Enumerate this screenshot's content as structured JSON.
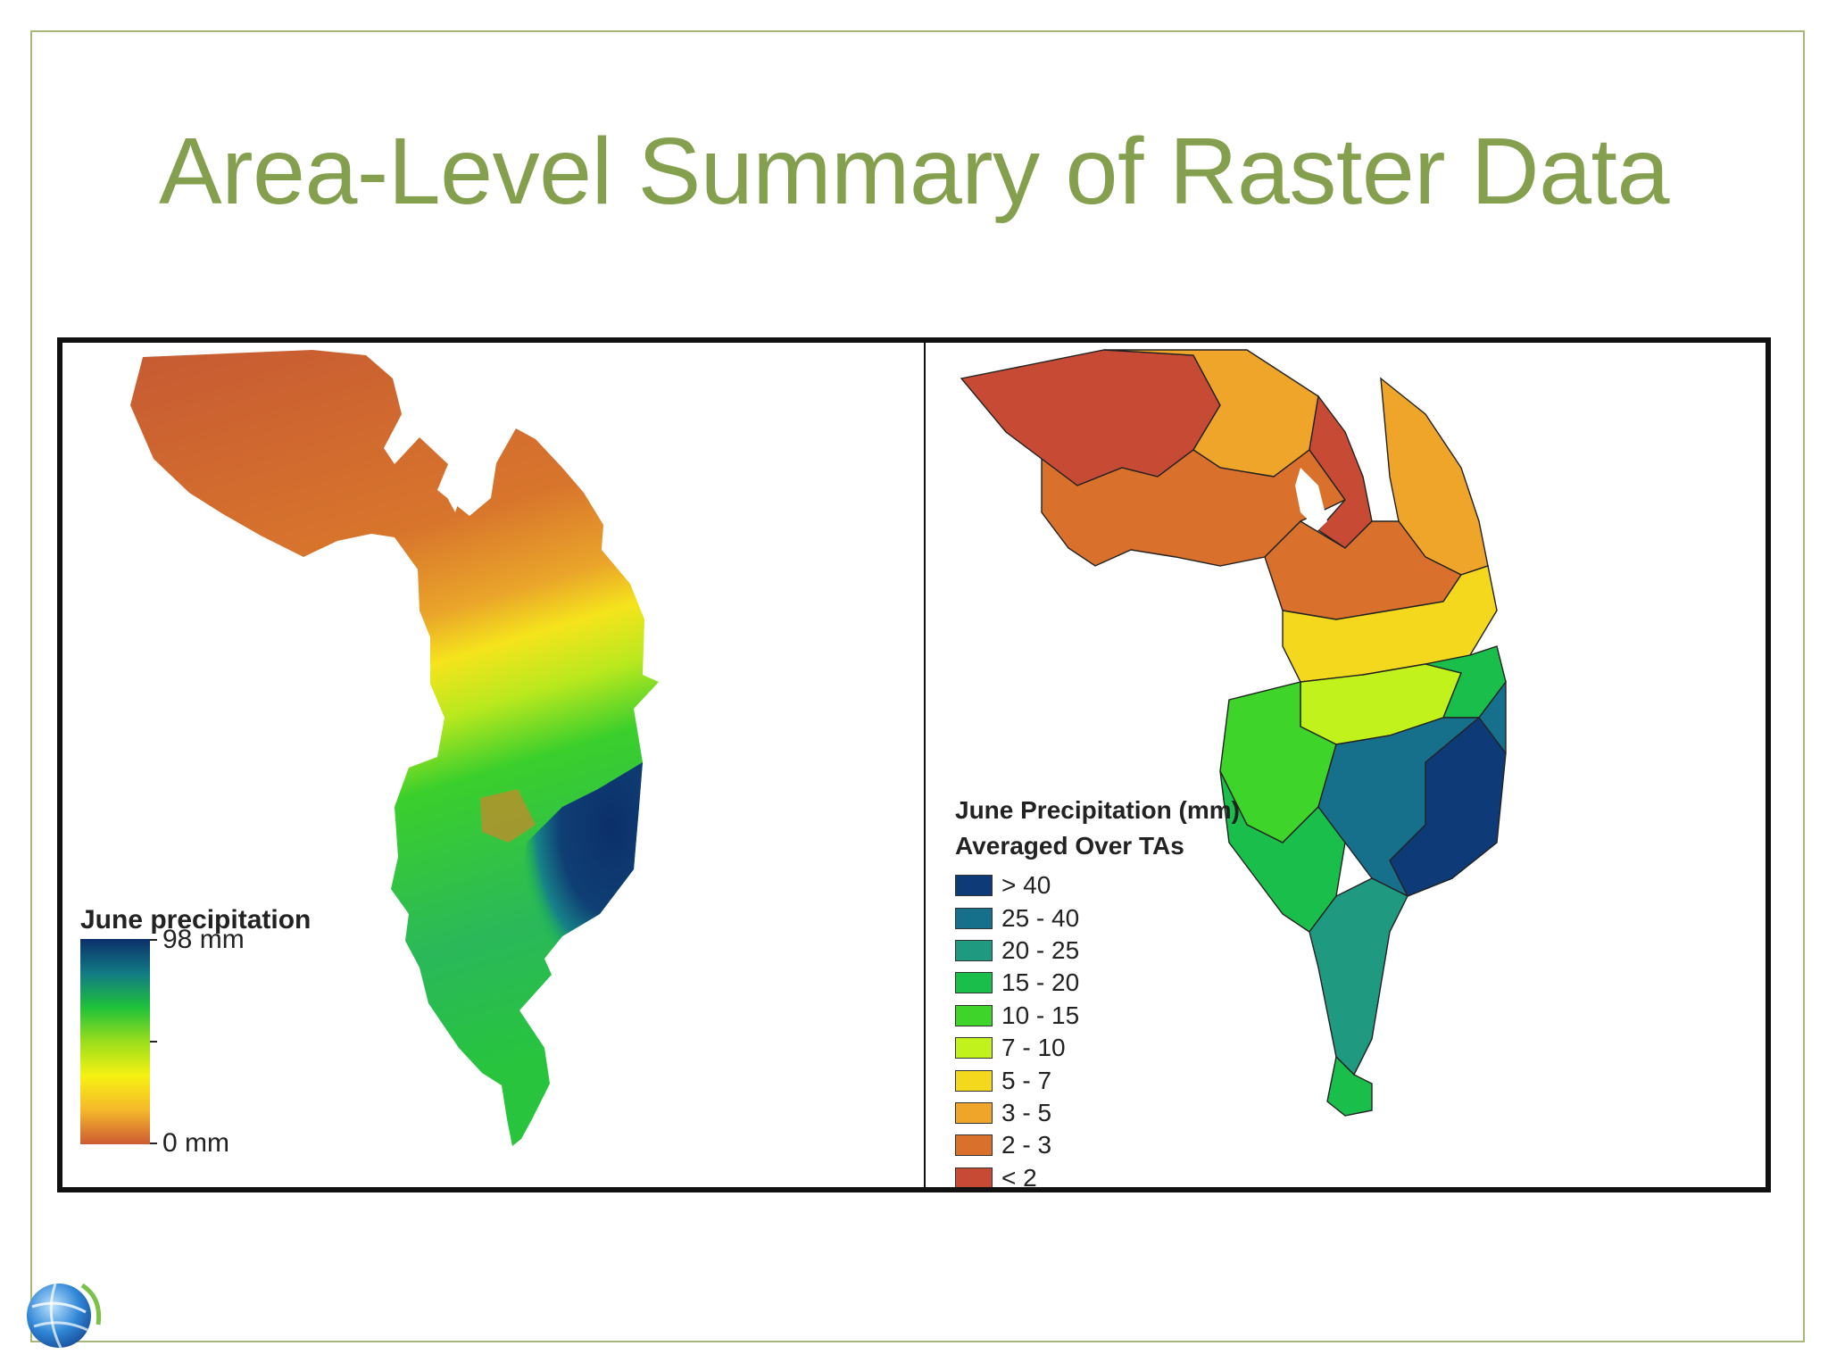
{
  "slide": {
    "title": "Area-Level Summary of Raster Data"
  },
  "left_map": {
    "legend_title": "June precipitation",
    "max_label": "98 mm",
    "min_label": "0 mm",
    "ramp_colors": [
      "#0c2f6a",
      "#127a85",
      "#1fc13a",
      "#9ade1c",
      "#f6f112",
      "#f5b82b",
      "#cd5a33"
    ]
  },
  "right_map": {
    "legend_title_line1": "June Precipitation (mm)",
    "legend_title_line2": "Averaged Over TAs",
    "classes": [
      {
        "label": "> 40",
        "color": "#0f3a78"
      },
      {
        "label": "25 - 40",
        "color": "#16708c"
      },
      {
        "label": "20 - 25",
        "color": "#1f9a80"
      },
      {
        "label": "15 - 20",
        "color": "#19bf4a"
      },
      {
        "label": "10 - 15",
        "color": "#3ed42a"
      },
      {
        "label": "7 - 10",
        "color": "#c2f21c"
      },
      {
        "label": "5 - 7",
        "color": "#f4d81e"
      },
      {
        "label": "3 - 5",
        "color": "#eea52a"
      },
      {
        "label": "2 - 3",
        "color": "#d9702b"
      },
      {
        "label": "< 2",
        "color": "#c74a34"
      }
    ]
  },
  "logo": {
    "icon": "globe-icon"
  }
}
